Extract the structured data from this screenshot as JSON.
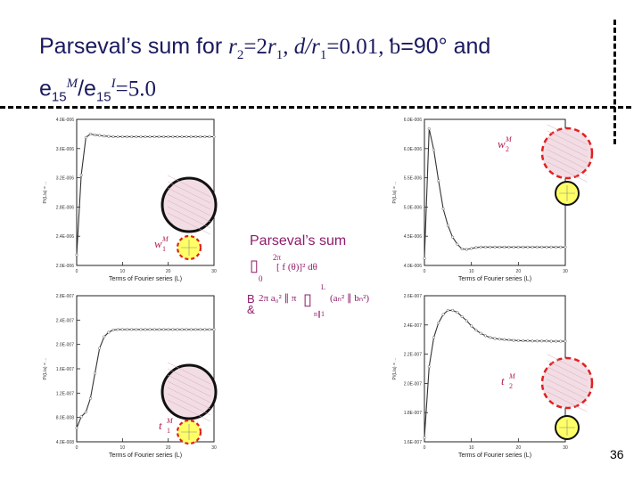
{
  "title": {
    "prefix": "Parseval’s sum for ",
    "r2": "r",
    "r2_sub": "2",
    "eq1": "=2",
    "r1": "r",
    "r1_sub": "1",
    "sep1": ", ",
    "d": "d/r",
    "d_sub": "1",
    "d_val": "=0.01, ",
    "angle_sym": "ƅ",
    "angle_val": "=90° and",
    "e1": "e",
    "e1_sub": "15",
    "e1_sup": "M",
    "slash": "/e",
    "e2_sub": "15",
    "e2_sup": "I",
    "ratio": "=5.0"
  },
  "center": {
    "label": "Parseval’s sum",
    "glyph1": "▯",
    "glyph2": "▯",
    "sub0": "0",
    "sup2pi": "2π",
    "integrand": "[ f (θ)]² dθ",
    "b_glyph": "B",
    "amp_glyph": "&",
    "series_head": "2π a₀² ∥ π",
    "series_sum": "(aₙ² ∥ bₙ²)",
    "sup_L": "L",
    "sub_n1": "n∥1"
  },
  "xlabel": "Terms of Fourier series (L)",
  "page_number": "36",
  "colors": {
    "curve": "#333333",
    "inclusion_fill": "#f2dde4",
    "fiber_fill": "#ffff66",
    "dash_red": "#e02020"
  },
  "charts": [
    {
      "id": "w1",
      "ylabel": "P/(L/a) = ...",
      "ytick_labels": [
        "4.0E-006",
        "3.6E-006",
        "3.2E-006",
        "2.8E-006",
        "2.4E-006",
        "2.0E-006"
      ],
      "xtick_labels": [
        "0",
        "10",
        "20",
        "30"
      ],
      "quantity": "w",
      "quantity_sub": "1",
      "quantity_sup": "M",
      "values": [
        0.3,
        2.6,
        3.68,
        3.78,
        3.75,
        3.74,
        3.72,
        3.71,
        3.7,
        3.7,
        3.7,
        3.7,
        3.7,
        3.7,
        3.7,
        3.7,
        3.7,
        3.7,
        3.7,
        3.7,
        3.7,
        3.7,
        3.7,
        3.7,
        3.7,
        3.7,
        3.7,
        3.7,
        3.7,
        3.7,
        3.7
      ]
    },
    {
      "id": "w2",
      "ylabel": "P/(L/a) = ...",
      "ytick_labels": [
        "6.0E-006",
        "6.0E-006",
        "5.5E-006",
        "5.0E-006",
        "4.5E-006",
        "4.0E-006"
      ],
      "xtick_labels": [
        "0",
        "10",
        "20",
        "30"
      ],
      "quantity": "w",
      "quantity_sub": "2",
      "quantity_sup": "M",
      "values": [
        0.3,
        5.8,
        4.9,
        3.6,
        2.4,
        1.7,
        1.2,
        0.9,
        0.7,
        0.68,
        0.72,
        0.76,
        0.78,
        0.78,
        0.78,
        0.78,
        0.78,
        0.78,
        0.78,
        0.78,
        0.78,
        0.78,
        0.78,
        0.78,
        0.78,
        0.78,
        0.78,
        0.78,
        0.78,
        0.78,
        0.78
      ]
    },
    {
      "id": "t1",
      "ylabel": "P/(L/a) = ...",
      "ytick_labels": [
        "2.8E-007",
        "2.4E-007",
        "2.0E-007",
        "1.6E-007",
        "1.2E-007",
        "8.0E-008",
        "4.0E-008"
      ],
      "xtick_labels": [
        "0",
        "10",
        "20",
        "30"
      ],
      "quantity": "t",
      "quantity_sub": "1",
      "quantity_sup": "M",
      "values": [
        0.3,
        0.55,
        0.65,
        0.95,
        1.5,
        2.05,
        2.3,
        2.4,
        2.45,
        2.46,
        2.46,
        2.46,
        2.46,
        2.46,
        2.46,
        2.46,
        2.46,
        2.46,
        2.46,
        2.46,
        2.46,
        2.46,
        2.46,
        2.46,
        2.46,
        2.46,
        2.46,
        2.46,
        2.46,
        2.46,
        2.46
      ]
    },
    {
      "id": "t2",
      "ylabel": "P/(L/a) = ...",
      "ytick_labels": [
        "2.6E-007",
        "2.4E-007",
        "2.2E-007",
        "2.0E-007",
        "1.8E-007",
        "1.6E-007"
      ],
      "xtick_labels": [
        "0",
        "10",
        "20",
        "30"
      ],
      "quantity": "t",
      "quantity_sub": "2",
      "quantity_sup": "M",
      "values": [
        0.2,
        3.6,
        5.0,
        5.7,
        6.1,
        6.3,
        6.3,
        6.2,
        6.0,
        5.8,
        5.55,
        5.35,
        5.2,
        5.08,
        5.0,
        4.95,
        4.92,
        4.9,
        4.88,
        4.86,
        4.85,
        4.84,
        4.84,
        4.83,
        4.83,
        4.83,
        4.83,
        4.82,
        4.82,
        4.82,
        4.82
      ]
    }
  ]
}
